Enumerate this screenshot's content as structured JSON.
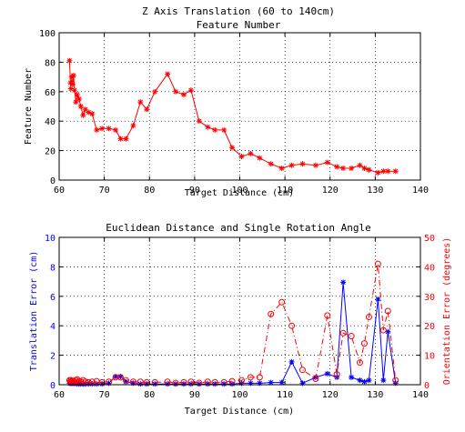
{
  "chart_data": [
    {
      "type": "line",
      "title_line1": "Z Axis Translation (60 to 140cm)",
      "title_line2": "Feature Number",
      "xlabel": "Target Distance (cm)",
      "ylabel": "Feature Number",
      "xlim": [
        60,
        140
      ],
      "ylim": [
        0,
        100
      ],
      "xticks": [
        60,
        70,
        80,
        90,
        100,
        110,
        120,
        130,
        140
      ],
      "yticks": [
        0,
        20,
        40,
        60,
        80,
        100
      ],
      "grid": true,
      "series": [
        {
          "marker": "asterisk",
          "color": "#ff0000",
          "linestyle": "solid",
          "x": [
            62.3,
            62.5,
            62.6,
            62.8,
            63.0,
            63.2,
            63.4,
            63.7,
            64.0,
            64.4,
            64.8,
            65.3,
            65.8,
            66.5,
            67.3,
            68.3,
            69.5,
            71.0,
            72.5,
            73.6,
            74.8,
            76.4,
            78.0,
            79.4,
            81.2,
            84.0,
            85.8,
            87.6,
            89.2,
            91.0,
            92.9,
            94.5,
            96.5,
            98.3,
            100.4,
            102.4,
            104.4,
            106.9,
            109.3,
            111.5,
            113.9,
            116.8,
            119.4,
            121.5,
            122.9,
            124.7,
            126.6,
            127.6,
            128.6,
            130.6,
            131.8,
            132.8,
            134.5
          ],
          "y": [
            81,
            66,
            62,
            70,
            65,
            71,
            61,
            53,
            58,
            55,
            50,
            44,
            48,
            46,
            45,
            34,
            35,
            35,
            34,
            28,
            28,
            37,
            53,
            48,
            60,
            72,
            60,
            58,
            61,
            40,
            36,
            34,
            34,
            22,
            16,
            18,
            15,
            11,
            8,
            10,
            11,
            10,
            12,
            9,
            8,
            8,
            10,
            8,
            7,
            5,
            6,
            6,
            6
          ]
        }
      ]
    },
    {
      "type": "line",
      "title": "Euclidean Distance and Single Rotation Angle",
      "xlabel": "Target Distance (cm)",
      "ylabel_left": "Translation Error (cm)",
      "ylabel_right": "Orientation Error (degrees)",
      "xlim": [
        60,
        140
      ],
      "ylim_left": [
        0,
        10
      ],
      "ylim_right": [
        0,
        50
      ],
      "xticks": [
        60,
        70,
        80,
        90,
        100,
        110,
        120,
        130,
        140
      ],
      "yticks_left": [
        0,
        2,
        4,
        6,
        8,
        10
      ],
      "yticks_right": [
        0,
        10,
        20,
        30,
        40,
        50
      ],
      "grid": true,
      "axis_colors": {
        "left": "#0000ff",
        "right": "#ff0000"
      },
      "series": [
        {
          "axis": "left",
          "marker": "asterisk",
          "color": "#0000ff",
          "linestyle": "solid",
          "x": [
            62.3,
            62.5,
            62.6,
            62.8,
            63.0,
            63.2,
            63.4,
            63.7,
            64.0,
            64.4,
            64.8,
            65.3,
            65.8,
            66.5,
            67.3,
            68.3,
            69.5,
            71.0,
            72.5,
            73.6,
            74.8,
            76.4,
            78.0,
            79.4,
            81.2,
            84.0,
            85.8,
            87.6,
            89.2,
            91.0,
            92.9,
            94.5,
            96.5,
            98.3,
            100.4,
            102.4,
            104.4,
            106.9,
            109.3,
            111.5,
            113.9,
            116.8,
            119.4,
            121.5,
            122.9,
            124.7,
            126.6,
            127.6,
            128.6,
            130.6,
            131.8,
            132.8,
            134.5
          ],
          "y": [
            0.1,
            0.1,
            0.1,
            0.1,
            0.1,
            0.1,
            0.1,
            0.1,
            0.05,
            0.05,
            0.05,
            0.05,
            0.05,
            0.05,
            0.05,
            0.05,
            0.05,
            0.1,
            0.55,
            0.55,
            0.2,
            0.1,
            0.05,
            0.05,
            0.05,
            0.05,
            0.05,
            0.05,
            0.05,
            0.05,
            0.05,
            0.05,
            0.05,
            0.05,
            0.1,
            0.1,
            0.1,
            0.15,
            0.15,
            1.55,
            0.1,
            0.5,
            0.75,
            0.5,
            6.95,
            0.5,
            0.3,
            0.2,
            0.3,
            5.8,
            0.3,
            3.6,
            0.1
          ]
        },
        {
          "axis": "right",
          "marker": "circle",
          "color": "#ff0000",
          "linestyle": "dashdot",
          "x": [
            62.3,
            62.5,
            62.6,
            62.8,
            63.0,
            63.2,
            63.4,
            63.7,
            64.0,
            64.4,
            64.8,
            65.3,
            65.8,
            66.5,
            67.3,
            68.3,
            69.5,
            71.0,
            72.5,
            73.6,
            74.8,
            76.4,
            78.0,
            79.4,
            81.2,
            84.0,
            85.8,
            87.6,
            89.2,
            91.0,
            92.9,
            94.5,
            96.5,
            98.3,
            100.4,
            102.4,
            104.4,
            106.9,
            109.3,
            111.5,
            113.9,
            116.8,
            119.4,
            121.5,
            122.9,
            124.7,
            126.6,
            127.6,
            128.6,
            130.6,
            131.8,
            132.8,
            134.5
          ],
          "y": [
            1.5,
            1.0,
            1.5,
            1.2,
            1.0,
            1.3,
            1.0,
            1.5,
            1.8,
            1.2,
            1.0,
            1.5,
            1.0,
            0.8,
            1.0,
            1.2,
            0.8,
            1.0,
            2.5,
            2.5,
            1.5,
            1.0,
            1.0,
            0.8,
            0.8,
            1.0,
            0.6,
            0.8,
            1.0,
            0.6,
            1.0,
            0.8,
            0.8,
            1.2,
            1.5,
            2.5,
            2.5,
            24,
            28,
            20,
            5,
            2,
            23.5,
            3.5,
            17.5,
            16.5,
            7.5,
            14,
            23,
            41,
            18.5,
            25,
            1.5
          ]
        }
      ]
    }
  ]
}
